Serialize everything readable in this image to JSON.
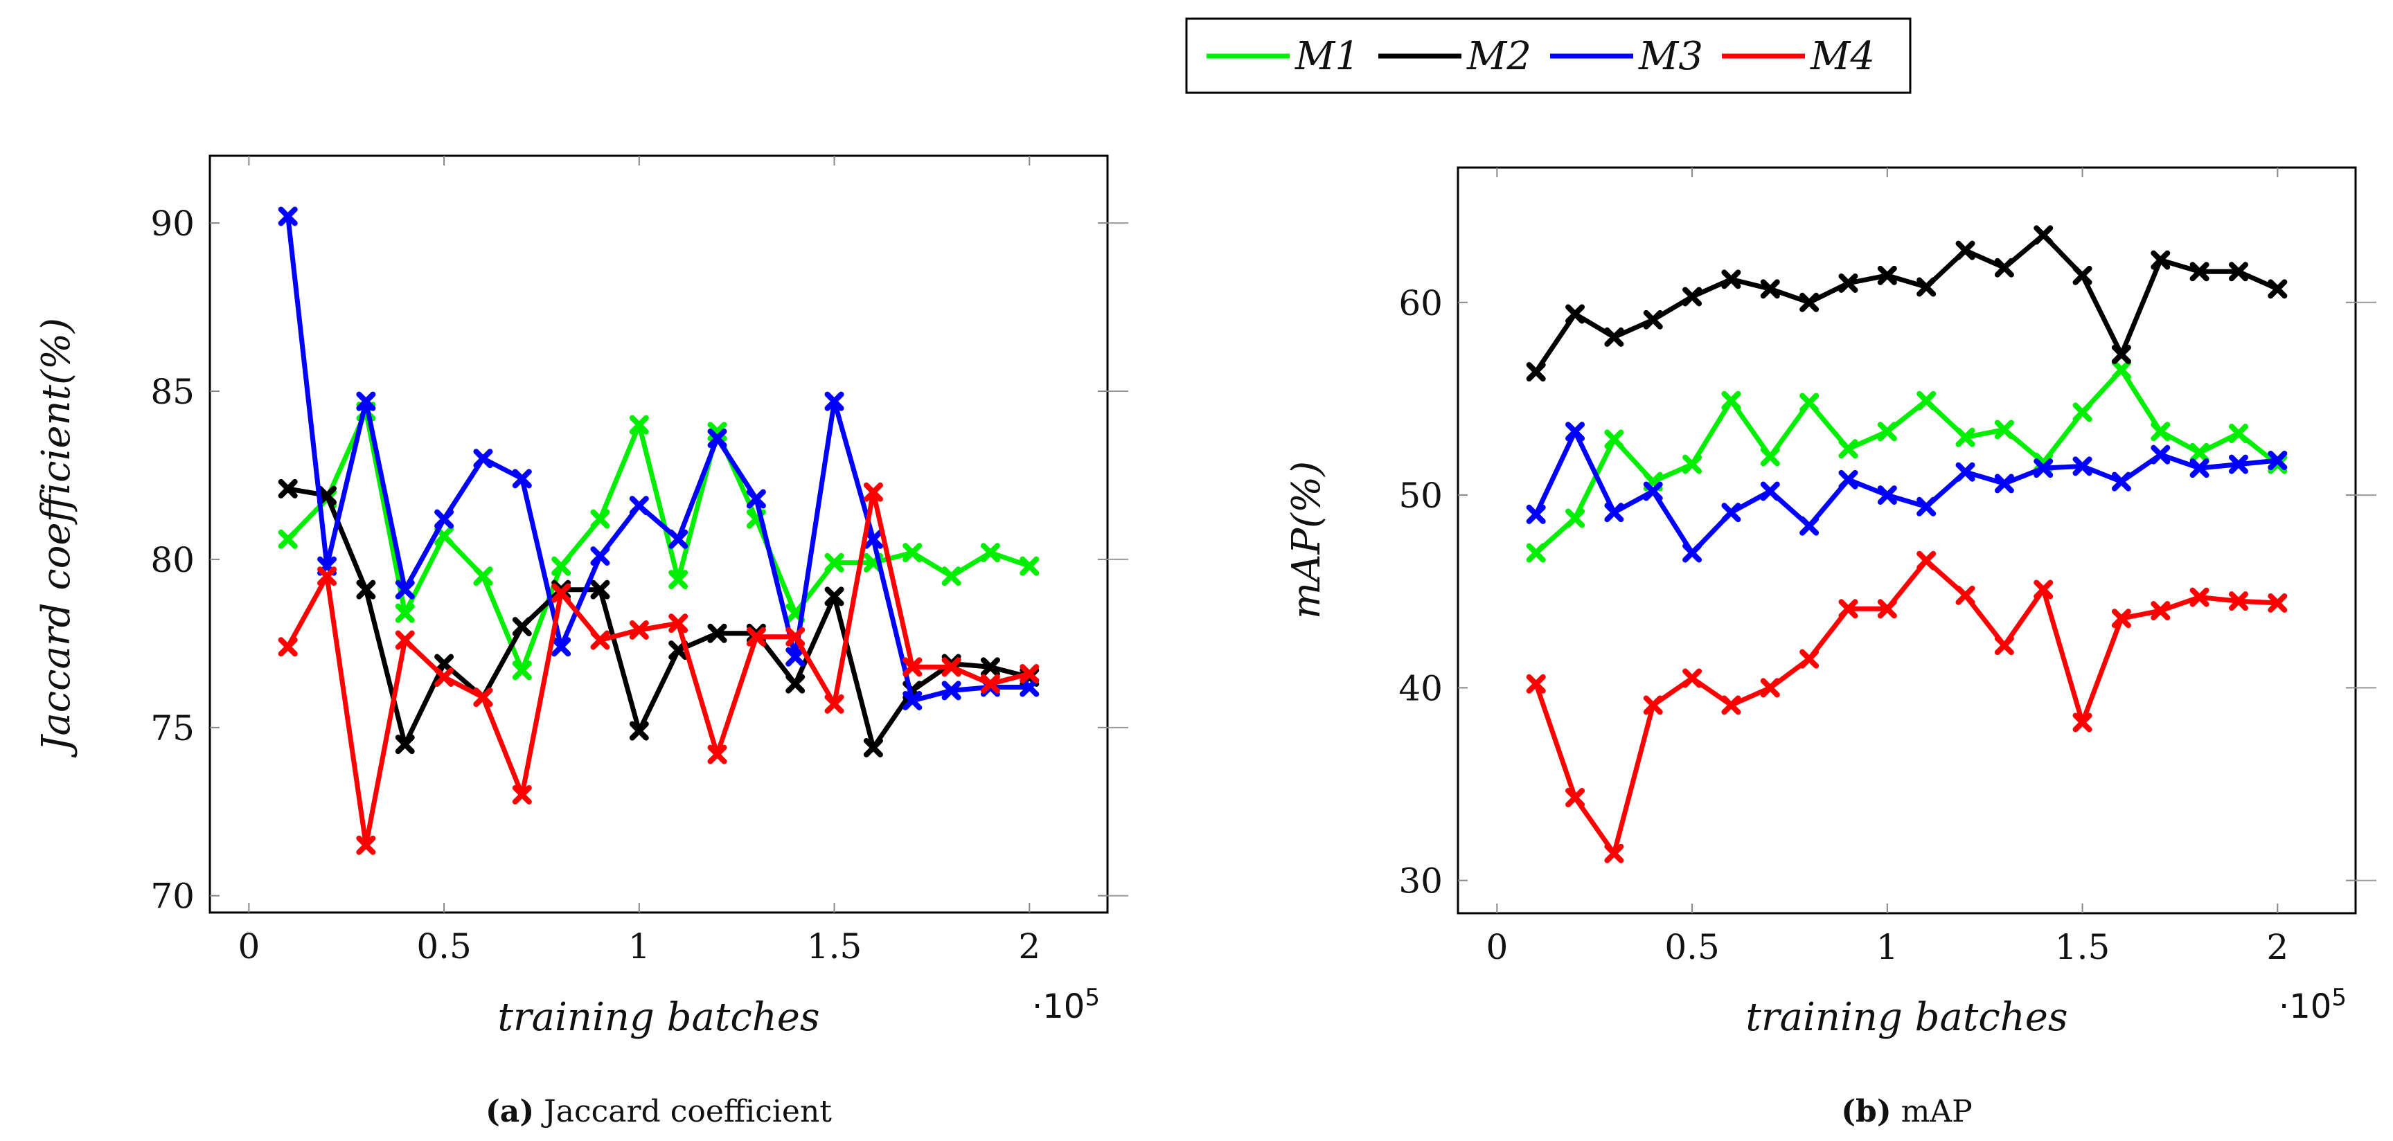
{
  "legend": {
    "items": [
      {
        "label": "M1",
        "color": "#00ee00"
      },
      {
        "label": "M2",
        "color": "#000000"
      },
      {
        "label": "M3",
        "color": "#0000ff"
      },
      {
        "label": "M4",
        "color": "#ff0000"
      }
    ]
  },
  "chart_data": [
    {
      "type": "line",
      "caption_tag": "(a)",
      "caption_text": "Jaccard coefficient",
      "xlabel": "training batches",
      "ylabel": "Jaccard coefficient(%)",
      "x_multiplier": "·10",
      "x_multiplier_exp": "5",
      "xlim": [
        -0.1,
        2.2
      ],
      "ylim": [
        69.5,
        92
      ],
      "xticks": [
        0,
        0.5,
        1,
        1.5,
        2
      ],
      "xtick_labels": [
        "0",
        "0.5",
        "1",
        "1.5",
        "2"
      ],
      "yticks": [
        70,
        75,
        80,
        85,
        90
      ],
      "ytick_labels": [
        "70",
        "75",
        "80",
        "85",
        "90"
      ],
      "x": [
        0.1,
        0.2,
        0.3,
        0.4,
        0.5,
        0.6,
        0.7,
        0.8,
        0.9,
        1.0,
        1.1,
        1.2,
        1.3,
        1.4,
        1.5,
        1.6,
        1.7,
        1.8,
        1.9,
        2.0
      ],
      "series": [
        {
          "name": "M1",
          "color": "#00ee00",
          "values": [
            80.6,
            81.8,
            84.4,
            78.4,
            80.7,
            79.5,
            76.7,
            79.8,
            81.2,
            84.0,
            79.4,
            83.8,
            81.2,
            78.4,
            79.9,
            79.9,
            80.2,
            79.5,
            80.2,
            79.8
          ]
        },
        {
          "name": "M2",
          "color": "#000000",
          "values": [
            82.1,
            81.9,
            79.1,
            74.5,
            76.9,
            75.9,
            78.0,
            79.1,
            79.1,
            74.9,
            77.3,
            77.8,
            77.8,
            76.3,
            78.9,
            74.4,
            76.1,
            76.9,
            76.8,
            76.5
          ]
        },
        {
          "name": "M3",
          "color": "#0000ff",
          "values": [
            90.2,
            79.8,
            84.7,
            79.1,
            81.2,
            83.0,
            82.4,
            77.4,
            80.1,
            81.6,
            80.6,
            83.6,
            81.8,
            77.1,
            84.7,
            80.6,
            75.8,
            76.1,
            76.2,
            76.2
          ]
        },
        {
          "name": "M4",
          "color": "#ff0000",
          "values": [
            77.4,
            79.5,
            71.5,
            77.6,
            76.5,
            75.9,
            73.0,
            79.0,
            77.6,
            77.9,
            78.1,
            74.2,
            77.7,
            77.7,
            75.7,
            82.0,
            76.8,
            76.8,
            76.3,
            76.6
          ]
        }
      ]
    },
    {
      "type": "line",
      "caption_tag": "(b)",
      "caption_text": "mAP",
      "xlabel": "training batches",
      "ylabel": "mAP(%)",
      "x_multiplier": "·10",
      "x_multiplier_exp": "5",
      "xlim": [
        -0.1,
        2.2
      ],
      "ylim": [
        28.3,
        67.0
      ],
      "xticks": [
        0,
        0.5,
        1,
        1.5,
        2
      ],
      "xtick_labels": [
        "0",
        "0.5",
        "1",
        "1.5",
        "2"
      ],
      "yticks": [
        30,
        40,
        50,
        60
      ],
      "ytick_labels": [
        "30",
        "40",
        "50",
        "60"
      ],
      "x": [
        0.1,
        0.2,
        0.3,
        0.4,
        0.5,
        0.6,
        0.7,
        0.8,
        0.9,
        1.0,
        1.1,
        1.2,
        1.3,
        1.4,
        1.5,
        1.6,
        1.7,
        1.8,
        1.9,
        2.0
      ],
      "series": [
        {
          "name": "M1",
          "color": "#00ee00",
          "values": [
            47.0,
            48.8,
            52.9,
            50.7,
            51.6,
            54.9,
            52.0,
            54.8,
            52.4,
            53.3,
            54.9,
            53.0,
            53.4,
            51.7,
            54.3,
            56.5,
            53.3,
            52.2,
            53.2,
            51.6
          ]
        },
        {
          "name": "M2",
          "color": "#000000",
          "values": [
            56.4,
            59.4,
            58.2,
            59.1,
            60.3,
            61.2,
            60.7,
            60.0,
            61.0,
            61.4,
            60.8,
            62.7,
            61.8,
            63.5,
            61.4,
            57.3,
            62.2,
            61.6,
            61.6,
            60.7
          ]
        },
        {
          "name": "M3",
          "color": "#0000ff",
          "values": [
            49.0,
            53.3,
            49.1,
            50.2,
            47.0,
            49.1,
            50.2,
            48.4,
            50.8,
            50.0,
            49.4,
            51.2,
            50.6,
            51.4,
            51.5,
            50.7,
            52.1,
            51.4,
            51.6,
            51.8
          ]
        },
        {
          "name": "M4",
          "color": "#ff0000",
          "values": [
            40.2,
            34.3,
            31.4,
            39.1,
            40.5,
            39.1,
            40.0,
            41.5,
            44.1,
            44.1,
            46.6,
            44.8,
            42.2,
            45.1,
            38.2,
            43.6,
            44.0,
            44.7,
            44.5,
            44.4
          ]
        }
      ]
    }
  ]
}
